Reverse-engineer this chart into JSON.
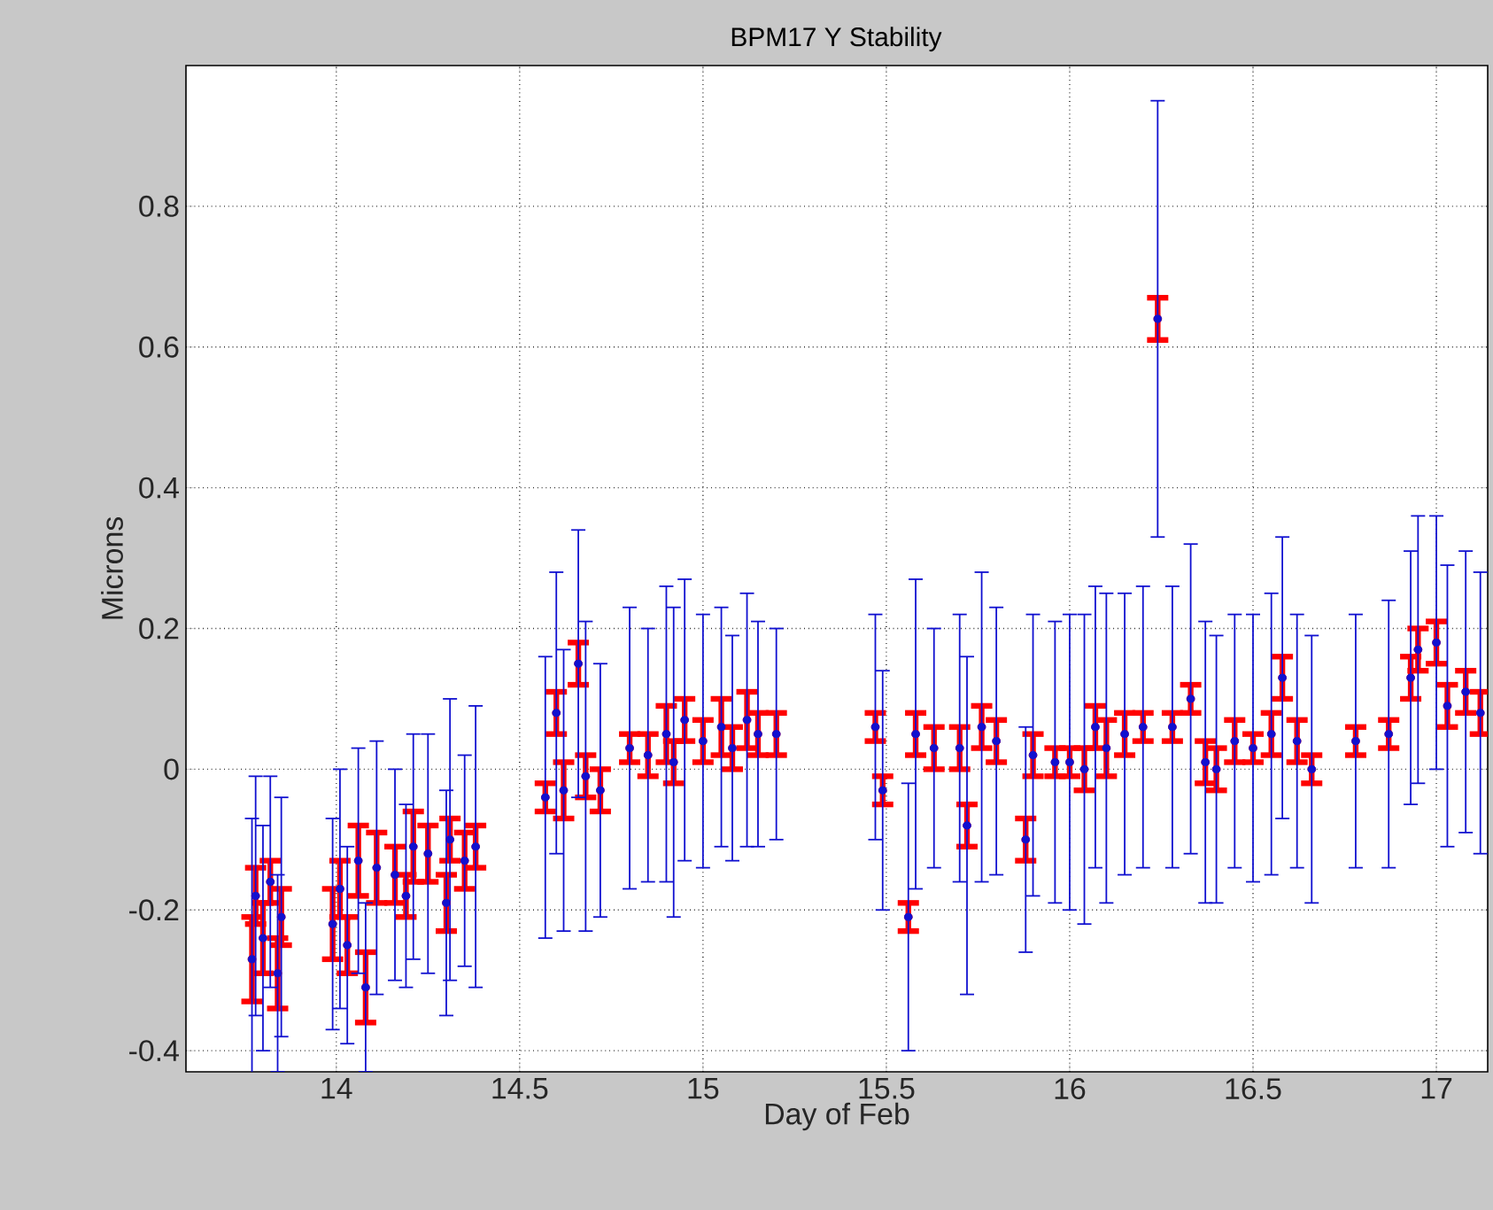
{
  "chart_data": {
    "type": "scatter",
    "title": "BPM17 Y Stability",
    "xlabel": "Day of Feb",
    "ylabel": "Microns",
    "xlim": [
      13.59,
      17.14
    ],
    "ylim": [
      -0.43,
      1.0
    ],
    "xticks": [
      14,
      14.5,
      15,
      15.5,
      16,
      16.5,
      17
    ],
    "yticks": [
      -0.4,
      -0.2,
      0,
      0.2,
      0.4,
      0.6,
      0.8
    ],
    "grid": true,
    "line_style": "dotted",
    "series": [
      {
        "color": "#1010d0",
        "marker": "circle",
        "x": [
          13.77,
          13.78,
          13.8,
          13.82,
          13.84,
          13.85,
          13.99,
          14.01,
          14.03,
          14.06,
          14.08,
          14.11,
          14.16,
          14.19,
          14.21,
          14.25,
          14.3,
          14.31,
          14.35,
          14.38,
          14.57,
          14.6,
          14.62,
          14.66,
          14.68,
          14.72,
          14.8,
          14.85,
          14.9,
          14.92,
          14.95,
          15.0,
          15.05,
          15.08,
          15.12,
          15.15,
          15.2,
          15.47,
          15.49,
          15.56,
          15.58,
          15.63,
          15.7,
          15.72,
          15.76,
          15.8,
          15.88,
          15.9,
          15.96,
          16.0,
          16.04,
          16.07,
          16.1,
          16.15,
          16.2,
          16.24,
          16.28,
          16.33,
          16.37,
          16.4,
          16.45,
          16.5,
          16.55,
          16.58,
          16.62,
          16.66,
          16.78,
          16.87,
          16.93,
          16.95,
          17.0,
          17.03,
          17.08,
          17.12
        ],
        "values": [
          -0.27,
          -0.18,
          -0.24,
          -0.16,
          -0.29,
          -0.21,
          -0.22,
          -0.17,
          -0.25,
          -0.13,
          -0.31,
          -0.14,
          -0.15,
          -0.18,
          -0.11,
          -0.12,
          -0.19,
          -0.1,
          -0.13,
          -0.11,
          -0.04,
          0.08,
          -0.03,
          0.15,
          -0.01,
          -0.03,
          0.03,
          0.02,
          0.05,
          0.01,
          0.07,
          0.04,
          0.06,
          0.03,
          0.07,
          0.05,
          0.05,
          0.06,
          -0.03,
          -0.21,
          0.05,
          0.03,
          0.03,
          -0.08,
          0.06,
          0.04,
          -0.1,
          0.02,
          0.01,
          0.01,
          0.0,
          0.06,
          0.03,
          0.05,
          0.06,
          0.64,
          0.06,
          0.1,
          0.01,
          0.0,
          0.04,
          0.03,
          0.05,
          0.13,
          0.04,
          0.0,
          0.04,
          0.05,
          0.13,
          0.17,
          0.18,
          0.09,
          0.11,
          0.08
        ],
        "errors": [
          0.2,
          0.17,
          0.16,
          0.15,
          0.14,
          0.17,
          0.15,
          0.17,
          0.14,
          0.16,
          0.12,
          0.18,
          0.15,
          0.13,
          0.16,
          0.17,
          0.16,
          0.2,
          0.15,
          0.2,
          0.2,
          0.2,
          0.2,
          0.19,
          0.22,
          0.18,
          0.2,
          0.18,
          0.21,
          0.22,
          0.2,
          0.18,
          0.17,
          0.16,
          0.18,
          0.16,
          0.15,
          0.16,
          0.17,
          0.19,
          0.22,
          0.17,
          0.19,
          0.24,
          0.22,
          0.19,
          0.16,
          0.2,
          0.2,
          0.21,
          0.22,
          0.2,
          0.22,
          0.2,
          0.2,
          0.31,
          0.2,
          0.22,
          0.2,
          0.19,
          0.18,
          0.19,
          0.2,
          0.2,
          0.18,
          0.19,
          0.18,
          0.19,
          0.18,
          0.19,
          0.18,
          0.2,
          0.2,
          0.2
        ]
      },
      {
        "color": "#ff0000",
        "x": [
          13.77,
          13.78,
          13.8,
          13.82,
          13.84,
          13.85,
          13.99,
          14.01,
          14.03,
          14.06,
          14.08,
          14.11,
          14.16,
          14.19,
          14.21,
          14.25,
          14.3,
          14.31,
          14.35,
          14.38,
          14.57,
          14.6,
          14.62,
          14.66,
          14.68,
          14.72,
          14.8,
          14.85,
          14.9,
          14.92,
          14.95,
          15.0,
          15.05,
          15.08,
          15.12,
          15.15,
          15.2,
          15.47,
          15.49,
          15.56,
          15.58,
          15.63,
          15.7,
          15.72,
          15.76,
          15.8,
          15.88,
          15.9,
          15.96,
          16.0,
          16.04,
          16.07,
          16.1,
          16.15,
          16.2,
          16.24,
          16.28,
          16.33,
          16.37,
          16.4,
          16.45,
          16.5,
          16.55,
          16.58,
          16.62,
          16.66,
          16.78,
          16.87,
          16.93,
          16.95,
          17.0,
          17.03,
          17.08,
          17.12
        ],
        "values": [
          -0.27,
          -0.18,
          -0.24,
          -0.16,
          -0.29,
          -0.21,
          -0.22,
          -0.17,
          -0.25,
          -0.13,
          -0.31,
          -0.14,
          -0.15,
          -0.18,
          -0.11,
          -0.12,
          -0.19,
          -0.1,
          -0.13,
          -0.11,
          -0.04,
          0.08,
          -0.03,
          0.15,
          -0.01,
          -0.03,
          0.03,
          0.02,
          0.05,
          0.01,
          0.07,
          0.04,
          0.06,
          0.03,
          0.07,
          0.05,
          0.05,
          0.06,
          -0.03,
          -0.21,
          0.05,
          0.03,
          0.03,
          -0.08,
          0.06,
          0.04,
          -0.1,
          0.02,
          0.01,
          0.01,
          0.0,
          0.06,
          0.03,
          0.05,
          0.06,
          0.64,
          0.06,
          0.1,
          0.01,
          0.0,
          0.04,
          0.03,
          0.05,
          0.13,
          0.04,
          0.0,
          0.04,
          0.05,
          0.13,
          0.17,
          0.18,
          0.09,
          0.11,
          0.08
        ],
        "errors": [
          0.06,
          0.04,
          0.05,
          0.03,
          0.05,
          0.04,
          0.05,
          0.04,
          0.04,
          0.05,
          0.05,
          0.05,
          0.04,
          0.03,
          0.05,
          0.04,
          0.04,
          0.03,
          0.04,
          0.03,
          0.02,
          0.03,
          0.04,
          0.03,
          0.03,
          0.03,
          0.02,
          0.03,
          0.04,
          0.03,
          0.03,
          0.03,
          0.04,
          0.03,
          0.04,
          0.03,
          0.03,
          0.02,
          0.02,
          0.02,
          0.03,
          0.03,
          0.03,
          0.03,
          0.03,
          0.03,
          0.03,
          0.03,
          0.02,
          0.02,
          0.03,
          0.03,
          0.04,
          0.03,
          0.02,
          0.03,
          0.02,
          0.02,
          0.03,
          0.03,
          0.03,
          0.02,
          0.03,
          0.03,
          0.03,
          0.02,
          0.02,
          0.02,
          0.03,
          0.03,
          0.03,
          0.03,
          0.03,
          0.03
        ]
      }
    ]
  }
}
